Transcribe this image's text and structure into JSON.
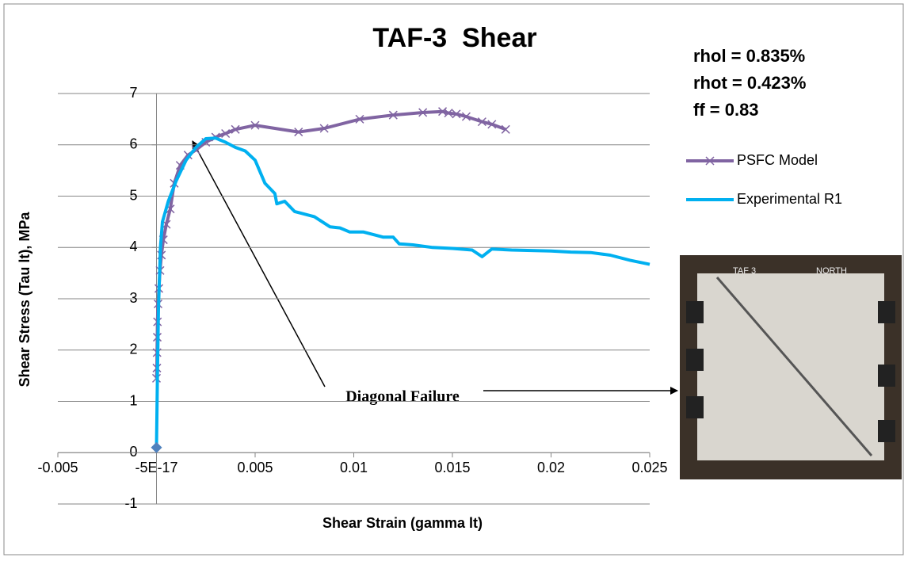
{
  "chart_data": {
    "type": "scatter",
    "title": "TAF-3  Shear",
    "x_label": "Shear Strain (gamma lt)",
    "y_label": "Shear Stress (Tau lt), MPa",
    "annotations": [
      "rhol = 0.835%",
      "rhot = 0.423%",
      "ff = 0.83",
      "Diagonal Failure"
    ],
    "photo_labels": [
      "TAF 3",
      "NORTH"
    ],
    "xlim": [
      -0.005,
      0.025
    ],
    "xticks": [
      -0.005,
      {
        "value": -5e-17,
        "label": "-5E-17"
      },
      0.005,
      0.01,
      0.015,
      0.02,
      0.025
    ],
    "ylim": [
      -1,
      7
    ],
    "yticks": [
      -1,
      0,
      1,
      2,
      3,
      4,
      5,
      6,
      7
    ],
    "grid": true,
    "legend": "right",
    "series": [
      {
        "name": "PSFC Model",
        "color": "#8064a2",
        "marker": "x",
        "x": [
          0,
          2e-05,
          3e-05,
          4e-05,
          5e-05,
          8e-05,
          0.00012,
          0.00018,
          0.00025,
          0.00035,
          0.0005,
          0.0007,
          0.0009,
          0.0012,
          0.0016,
          0.002,
          0.0025,
          0.003,
          0.0035,
          0.004,
          0.005,
          0.0072,
          0.0085,
          0.0103,
          0.012,
          0.0135,
          0.0145,
          0.0148,
          0.0152,
          0.0157,
          0.0165,
          0.017,
          0.0177
        ],
        "values": [
          1.45,
          1.65,
          1.95,
          2.25,
          2.55,
          2.9,
          3.2,
          3.55,
          3.85,
          4.15,
          4.45,
          4.75,
          5.25,
          5.6,
          5.8,
          5.9,
          6.05,
          6.15,
          6.22,
          6.3,
          6.38,
          6.25,
          6.32,
          6.5,
          6.58,
          6.63,
          6.65,
          6.62,
          6.6,
          6.55,
          6.45,
          6.4,
          6.3
        ]
      },
      {
        "name": "Experimental R1",
        "color": "#00b0f0",
        "marker": "none",
        "x": [
          0,
          5e-05,
          0.0001,
          0.0002,
          0.0003,
          0.0006,
          0.001,
          0.0015,
          0.002,
          0.0025,
          0.003,
          0.0035,
          0.004,
          0.0045,
          0.005,
          0.0055,
          0.006,
          0.0061,
          0.0065,
          0.007,
          0.008,
          0.0088,
          0.0093,
          0.0098,
          0.0105,
          0.011,
          0.0115,
          0.012,
          0.0123,
          0.013,
          0.014,
          0.015,
          0.016,
          0.0165,
          0.017,
          0.018,
          0.019,
          0.02,
          0.021,
          0.022,
          0.023,
          0.024,
          0.025
        ],
        "values": [
          0.1,
          1.5,
          2.8,
          4.0,
          4.5,
          4.9,
          5.3,
          5.7,
          5.95,
          6.12,
          6.13,
          6.05,
          5.95,
          5.88,
          5.7,
          5.25,
          5.05,
          4.85,
          4.9,
          4.7,
          4.6,
          4.4,
          4.38,
          4.3,
          4.3,
          4.25,
          4.2,
          4.2,
          4.07,
          4.05,
          4.0,
          3.98,
          3.95,
          3.82,
          3.97,
          3.95,
          3.94,
          3.93,
          3.91,
          3.9,
          3.85,
          3.75,
          3.67
        ]
      },
      {
        "color": "#4f81bd",
        "marker": "diamond",
        "x": [
          0
        ],
        "values": [
          0.1
        ]
      }
    ]
  }
}
